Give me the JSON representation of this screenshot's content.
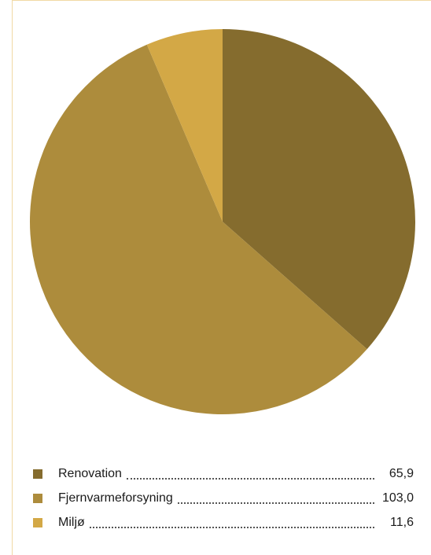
{
  "colors": {
    "frame": "#f1d9a4",
    "renovation": "#856c2e",
    "fjernvarmeforsyning": "#ad8c3c",
    "miljo": "#d3a846"
  },
  "chart_data": {
    "type": "pie",
    "title": "",
    "series": [
      {
        "name": "Renovation",
        "value": 65.9,
        "label": "65,9",
        "color": "#856c2e"
      },
      {
        "name": "Fjernvarmeforsyning",
        "value": 103.0,
        "label": "103,0",
        "color": "#ad8c3c"
      },
      {
        "name": "Miljø",
        "value": 11.6,
        "label": "11,6",
        "color": "#d3a846"
      }
    ],
    "legend_placement": "bottom"
  },
  "legend": {
    "items": [
      {
        "label": "Renovation",
        "value": "65,9"
      },
      {
        "label": "Fjernvarmeforsyning",
        "value": "103,0"
      },
      {
        "label": "Miljø",
        "value": "11,6"
      }
    ]
  }
}
